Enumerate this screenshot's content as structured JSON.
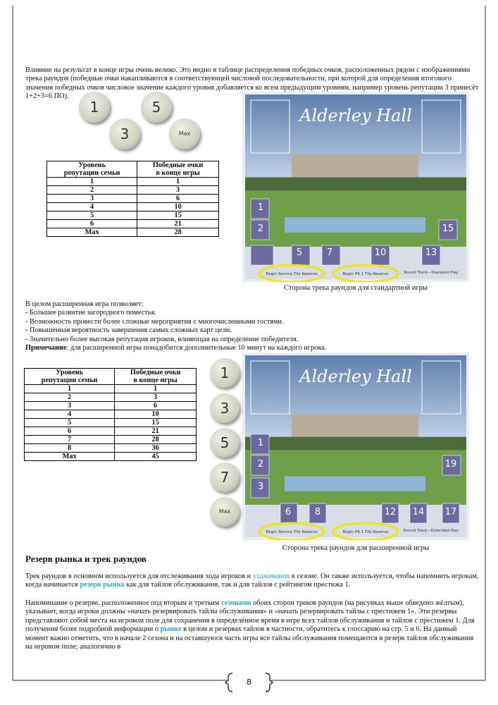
{
  "intro": "Влияние на результат в конце игры очень велико. Это видно в таблице распределения победных очков, расположенных рядом с изображениями трека раундов (победные очки накапливаются в соответствующей числовой последовательности, при которой для определения итогового значения победных очков числовое значение каждого уровня добавляется ко всем предыдущим уровням, например уровень репутации 3 принесёт 1+2+3=6 ПО).",
  "tokens_top": [
    "1",
    "5",
    "3",
    "Max"
  ],
  "table_standard": {
    "header": [
      [
        "Уровень",
        "репутации семьи"
      ],
      [
        "Победные очки",
        "в конце игры"
      ]
    ],
    "rows": [
      [
        1,
        1
      ],
      [
        2,
        3
      ],
      [
        3,
        6
      ],
      [
        4,
        10
      ],
      [
        5,
        15
      ],
      [
        6,
        21
      ],
      [
        "Max",
        28
      ]
    ]
  },
  "board_standard": {
    "title": "Alderley Hall",
    "numbers": [
      "1",
      "2",
      "5",
      "7",
      "10",
      "13",
      "15"
    ],
    "labels": [
      "Begin Service Tile Reserve",
      "Begin PR 1 Tile Reserve",
      "Round Track—Standard Play"
    ],
    "caption": "Сторона трека раундов для стандартной игры"
  },
  "features": {
    "intro": "В целом расширенная игра позволяет:",
    "items": [
      "- Большее развитие загородного поместья.",
      "- Возможность провести более сложные мероприятия с многочисленными гостями.",
      "- Повышенная вероятность завершения самых сложных карт цели.",
      "- Значительно более высокая репутация игроков, влияющая на определение победителя."
    ],
    "note_label": "Примечание",
    "note_text": ": для расширенной игры понадобится дополнительные 10 минут на каждого игрока."
  },
  "table_extended": {
    "header": [
      [
        "Уровень",
        "репутации семьи"
      ],
      [
        "Победные очки",
        "в конце игры"
      ]
    ],
    "rows": [
      [
        1,
        1
      ],
      [
        2,
        3
      ],
      [
        3,
        6
      ],
      [
        4,
        10
      ],
      [
        5,
        15
      ],
      [
        6,
        21
      ],
      [
        7,
        28
      ],
      [
        8,
        36
      ],
      [
        "Max",
        45
      ]
    ]
  },
  "tokens_side": [
    "1",
    "3",
    "5",
    "7",
    "Max"
  ],
  "board_extended": {
    "title": "Alderley Hall",
    "numbers": [
      "1",
      "2",
      "3",
      "6",
      "8",
      "12",
      "14",
      "17",
      "19"
    ],
    "labels": [
      "Begin Service Tile Reserve",
      "Begin PR 1 Tile Reserve",
      "Round Track—Extended Play"
    ],
    "caption": "Сторона трека раундов для расширенной игры"
  },
  "section": {
    "heading": "Резерв рынка и трек раундов",
    "paragraphs": [
      [
        "Трек раундов в основном используется для отслеживания хода игроков и ",
        "ухаживания",
        " в сезоне. Он также используется, чтобы напомнить игрокам, когда начинается ",
        "резерв рынка",
        " как для тайлов обслуживания, так и для тайлов с рейтингом престижа 1."
      ],
      [
        "Напоминание о резерве, расположенное под вторым и третьим ",
        "сезонами",
        " обоих сторон треков раундов (на рисунках выше обведено жёлтым), указывает, когда игроки должны «начать резервировать тайлы обслуживания» и «начать резервировать тайлы с престижем 1». Эти резервы представляют собой места на игровом поле для сохранения в определённое время в игре всех тайлов обслуживания и тайлов с престижем 1. Для получения более подробной информации о ",
        "рынке",
        " в целом и резервах тайлов в частности, обратитесь к глоссарию на стр. 5 и 6. На данный момент важно отметить, что в начале 2 сезона и на оставшуюся часть игры все тайлы обслуживания помещаются в резерв тайлов обслуживания на игровом поле; аналогично в"
      ]
    ]
  },
  "page_number": "8"
}
